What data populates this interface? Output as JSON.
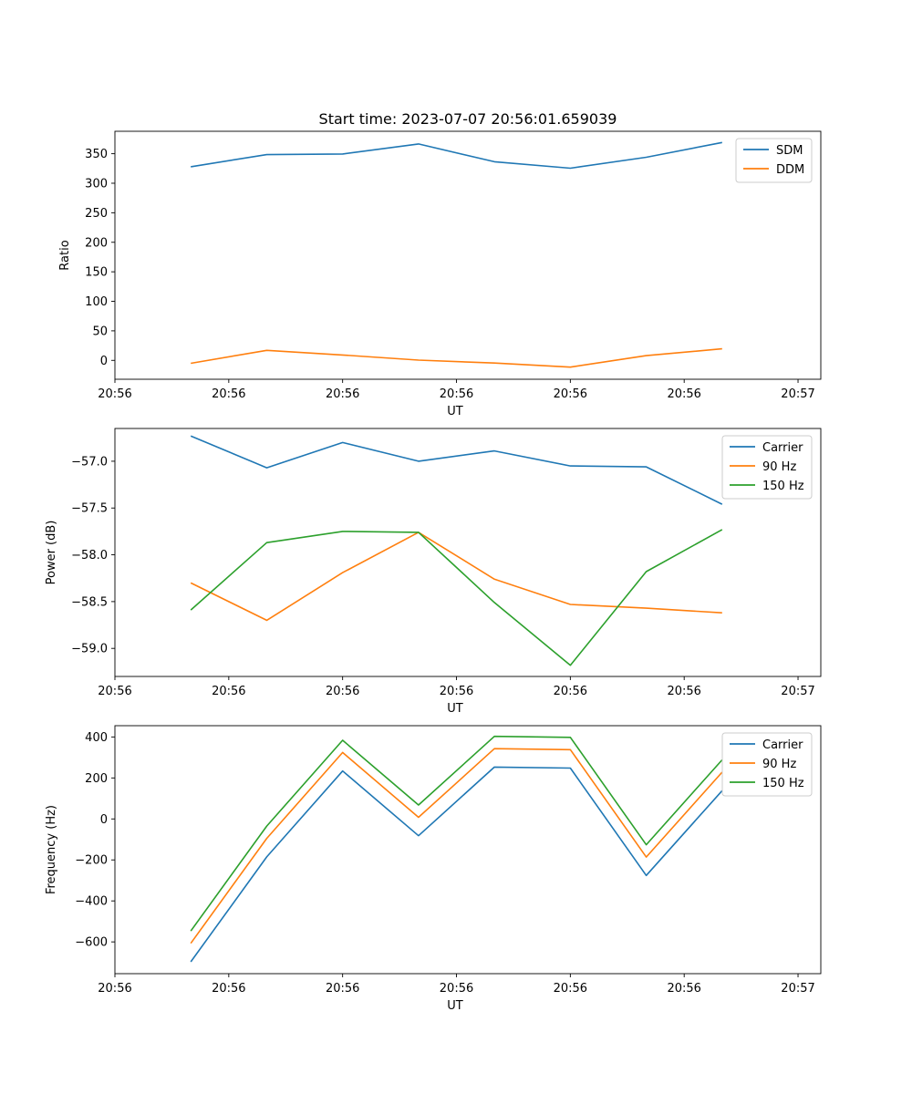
{
  "figure": {
    "title": "Start time: 2023-07-07 20:56:01.659039"
  },
  "chart_data": [
    {
      "type": "line",
      "title": "Start time: 2023-07-07 20:56:01.659039",
      "xlabel": "UT",
      "ylabel": "Ratio",
      "x_tick_labels": [
        "20:56",
        "20:56",
        "20:56",
        "20:56",
        "20:56",
        "20:56",
        "20:57"
      ],
      "x": [
        1,
        2,
        3,
        4,
        5,
        6,
        7,
        8
      ],
      "xlim": [
        0,
        9.3
      ],
      "x_ticks": [
        0,
        1.5,
        3,
        4.5,
        6,
        7.5,
        9
      ],
      "ylim": [
        -32,
        388
      ],
      "y_ticks": [
        0,
        50,
        100,
        150,
        200,
        250,
        300,
        350
      ],
      "y_tick_labels": [
        "0",
        "50",
        "100",
        "150",
        "200",
        "250",
        "300",
        "350"
      ],
      "legend_position": "top-right",
      "series": [
        {
          "name": "SDM",
          "color": "#1f77b4",
          "values": [
            328,
            348.5,
            349.5,
            366.5,
            336.5,
            325.5,
            344,
            369
          ]
        },
        {
          "name": "DDM",
          "color": "#ff7f0e",
          "values": [
            -5,
            17,
            9,
            0.5,
            -4.5,
            -11.5,
            8,
            19.5
          ]
        }
      ]
    },
    {
      "type": "line",
      "xlabel": "UT",
      "ylabel": "Power (dB)",
      "x_tick_labels": [
        "20:56",
        "20:56",
        "20:56",
        "20:56",
        "20:56",
        "20:56",
        "20:57"
      ],
      "x": [
        1,
        2,
        3,
        4,
        5,
        6,
        7,
        8
      ],
      "xlim": [
        0,
        9.3
      ],
      "x_ticks": [
        0,
        1.5,
        3,
        4.5,
        6,
        7.5,
        9
      ],
      "ylim": [
        -59.3,
        -56.65
      ],
      "y_ticks": [
        -59.0,
        -58.5,
        -58.0,
        -57.5,
        -57.0
      ],
      "y_tick_labels": [
        "−59.0",
        "−58.5",
        "−58.0",
        "−57.5",
        "−57.0"
      ],
      "legend_position": "top-right",
      "series": [
        {
          "name": "Carrier",
          "color": "#1f77b4",
          "values": [
            -56.73,
            -57.07,
            -56.8,
            -57.0,
            -56.89,
            -57.05,
            -57.06,
            -57.46
          ]
        },
        {
          "name": "90 Hz",
          "color": "#ff7f0e",
          "values": [
            -58.3,
            -58.7,
            -58.19,
            -57.76,
            -58.26,
            -58.53,
            -58.57,
            -58.62
          ]
        },
        {
          "name": "150 Hz",
          "color": "#2ca02c",
          "values": [
            -58.59,
            -57.87,
            -57.75,
            -57.76,
            -58.51,
            -59.18,
            -58.18,
            -57.73
          ]
        }
      ]
    },
    {
      "type": "line",
      "xlabel": "UT",
      "ylabel": "Frequency (Hz)",
      "x_tick_labels": [
        "20:56",
        "20:56",
        "20:56",
        "20:56",
        "20:56",
        "20:56",
        "20:57"
      ],
      "x": [
        1,
        2,
        3,
        4,
        5,
        6,
        7,
        8
      ],
      "xlim": [
        0,
        9.3
      ],
      "x_ticks": [
        0,
        1.5,
        3,
        4.5,
        6,
        7.5,
        9
      ],
      "ylim": [
        -755,
        455
      ],
      "y_ticks": [
        -600,
        -400,
        -200,
        0,
        200,
        400
      ],
      "y_tick_labels": [
        "−600",
        "−400",
        "−200",
        "0",
        "200",
        "400"
      ],
      "legend_position": "top-right",
      "series": [
        {
          "name": "Carrier",
          "color": "#1f77b4",
          "values": [
            -697,
            -185,
            234,
            -82,
            253,
            248,
            -276,
            138
          ]
        },
        {
          "name": "90 Hz",
          "color": "#ff7f0e",
          "values": [
            -607,
            -95,
            324,
            8,
            343,
            338,
            -186,
            228
          ]
        },
        {
          "name": "150 Hz",
          "color": "#2ca02c",
          "values": [
            -547,
            -35,
            384,
            68,
            403,
            398,
            -126,
            288
          ]
        }
      ]
    }
  ]
}
